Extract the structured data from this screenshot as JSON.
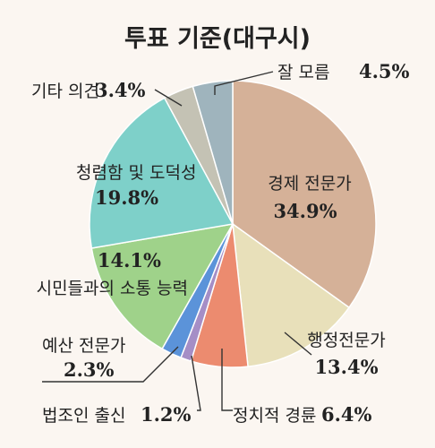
{
  "chart_data": {
    "type": "pie",
    "title": "투표 기준(대구시)",
    "slices": [
      {
        "label": "경제 전문가",
        "value": 34.9,
        "value_label": "34.9%",
        "color": "#d5b198"
      },
      {
        "label": "행정전문가",
        "value": 13.4,
        "value_label": "13.4%",
        "color": "#e8e0ba"
      },
      {
        "label": "정치적 경륜",
        "value": 6.4,
        "value_label": "6.4%",
        "color": "#ec8b6f"
      },
      {
        "label": "법조인 출신",
        "value": 1.2,
        "value_label": "1.2%",
        "color": "#a58ec6"
      },
      {
        "label": "예산 전문가",
        "value": 2.3,
        "value_label": "2.3%",
        "color": "#5b93d9"
      },
      {
        "label": "시민들과의 소통 능력",
        "value": 14.1,
        "value_label": "14.1%",
        "color": "#9fd28a"
      },
      {
        "label": "청렴함 및 도덕성",
        "value": 19.8,
        "value_label": "19.8%",
        "color": "#7ed0c9"
      },
      {
        "label": "기타 의견",
        "value": 3.4,
        "value_label": "3.4%",
        "color": "#c4c2b4"
      },
      {
        "label": "잘 모름",
        "value": 4.5,
        "value_label": "4.5%",
        "color": "#9fb4bd"
      }
    ]
  }
}
